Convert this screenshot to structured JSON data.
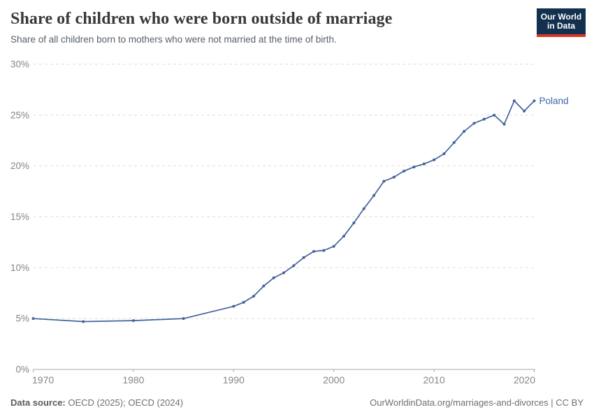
{
  "header": {
    "title": "Share of children who were born outside of marriage",
    "subtitle": "Share of all children born to mothers who were not married at the time of birth."
  },
  "logo": {
    "line1": "Our World",
    "line2": "in Data"
  },
  "footer": {
    "datasource_label": "Data source:",
    "datasource_value": " OECD (2025); OECD (2024)",
    "link": "OurWorldinData.org/marriages-and-divorces | CC BY"
  },
  "colors": {
    "line": "#44639c",
    "series_label": "#3e66a8",
    "grid": "#dedede",
    "axis": "#a9a9a9",
    "tick_label": "#858585",
    "logo_bg": "#12304f",
    "logo_red": "#dc3426"
  },
  "chart_data": {
    "type": "line",
    "title": "Share of children who were born outside of marriage",
    "subtitle": "Share of all children born to mothers who were not married at the time of birth.",
    "xlabel": "",
    "ylabel": "",
    "xlim": [
      1970,
      2020
    ],
    "ylim": [
      0,
      30
    ],
    "grid": "dashed horizontal",
    "legend_position": "end-of-line label",
    "xticks": [
      1970,
      1980,
      1990,
      2000,
      2010,
      2020
    ],
    "xtick_labels": [
      "1970",
      "1980",
      "1990",
      "2000",
      "2010",
      "2020"
    ],
    "yticks": [
      0,
      5,
      10,
      15,
      20,
      25,
      30
    ],
    "ytick_labels": [
      "0%",
      "5%",
      "10%",
      "15%",
      "20%",
      "25%",
      "30%"
    ],
    "series": [
      {
        "name": "Poland",
        "x": [
          1970,
          1975,
          1980,
          1985,
          1990,
          1991,
          1992,
          1993,
          1994,
          1995,
          1996,
          1997,
          1998,
          1999,
          2000,
          2001,
          2002,
          2003,
          2004,
          2005,
          2006,
          2007,
          2008,
          2009,
          2010,
          2011,
          2012,
          2013,
          2014,
          2015,
          2016,
          2017,
          2018,
          2019,
          2020
        ],
        "values": [
          5.0,
          4.7,
          4.8,
          5.0,
          6.2,
          6.6,
          7.2,
          8.2,
          9.0,
          9.5,
          10.2,
          11.0,
          11.6,
          11.7,
          12.1,
          13.1,
          14.4,
          15.8,
          17.1,
          18.5,
          18.9,
          19.5,
          19.9,
          20.2,
          20.6,
          21.2,
          22.3,
          23.4,
          24.2,
          24.6,
          25.0,
          24.1,
          26.4,
          25.4,
          26.4
        ]
      }
    ]
  }
}
